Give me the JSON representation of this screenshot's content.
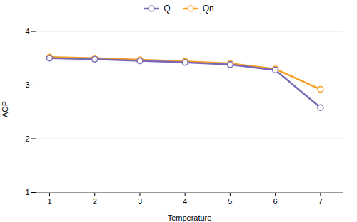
{
  "chart_data": {
    "type": "line",
    "x": [
      1,
      2,
      3,
      4,
      5,
      6,
      7
    ],
    "series": [
      {
        "name": "Q",
        "color": "#7B68B5",
        "values": [
          3.5,
          3.48,
          3.45,
          3.42,
          3.38,
          3.28,
          2.58
        ]
      },
      {
        "name": "Qn",
        "color": "#F5A020",
        "values": [
          3.52,
          3.5,
          3.47,
          3.44,
          3.4,
          3.3,
          2.92
        ]
      }
    ],
    "xlabel": "Temperature",
    "ylabel": "AOP",
    "xlim": [
      0.7,
      7.5
    ],
    "xticks": [
      1,
      2,
      3,
      4,
      5,
      6,
      7
    ],
    "ylim": [
      1,
      4.1
    ],
    "yticks": [
      1,
      2,
      3,
      4
    ],
    "grid": "y",
    "legend": "top",
    "marker": "circle",
    "line_style": "solid"
  }
}
